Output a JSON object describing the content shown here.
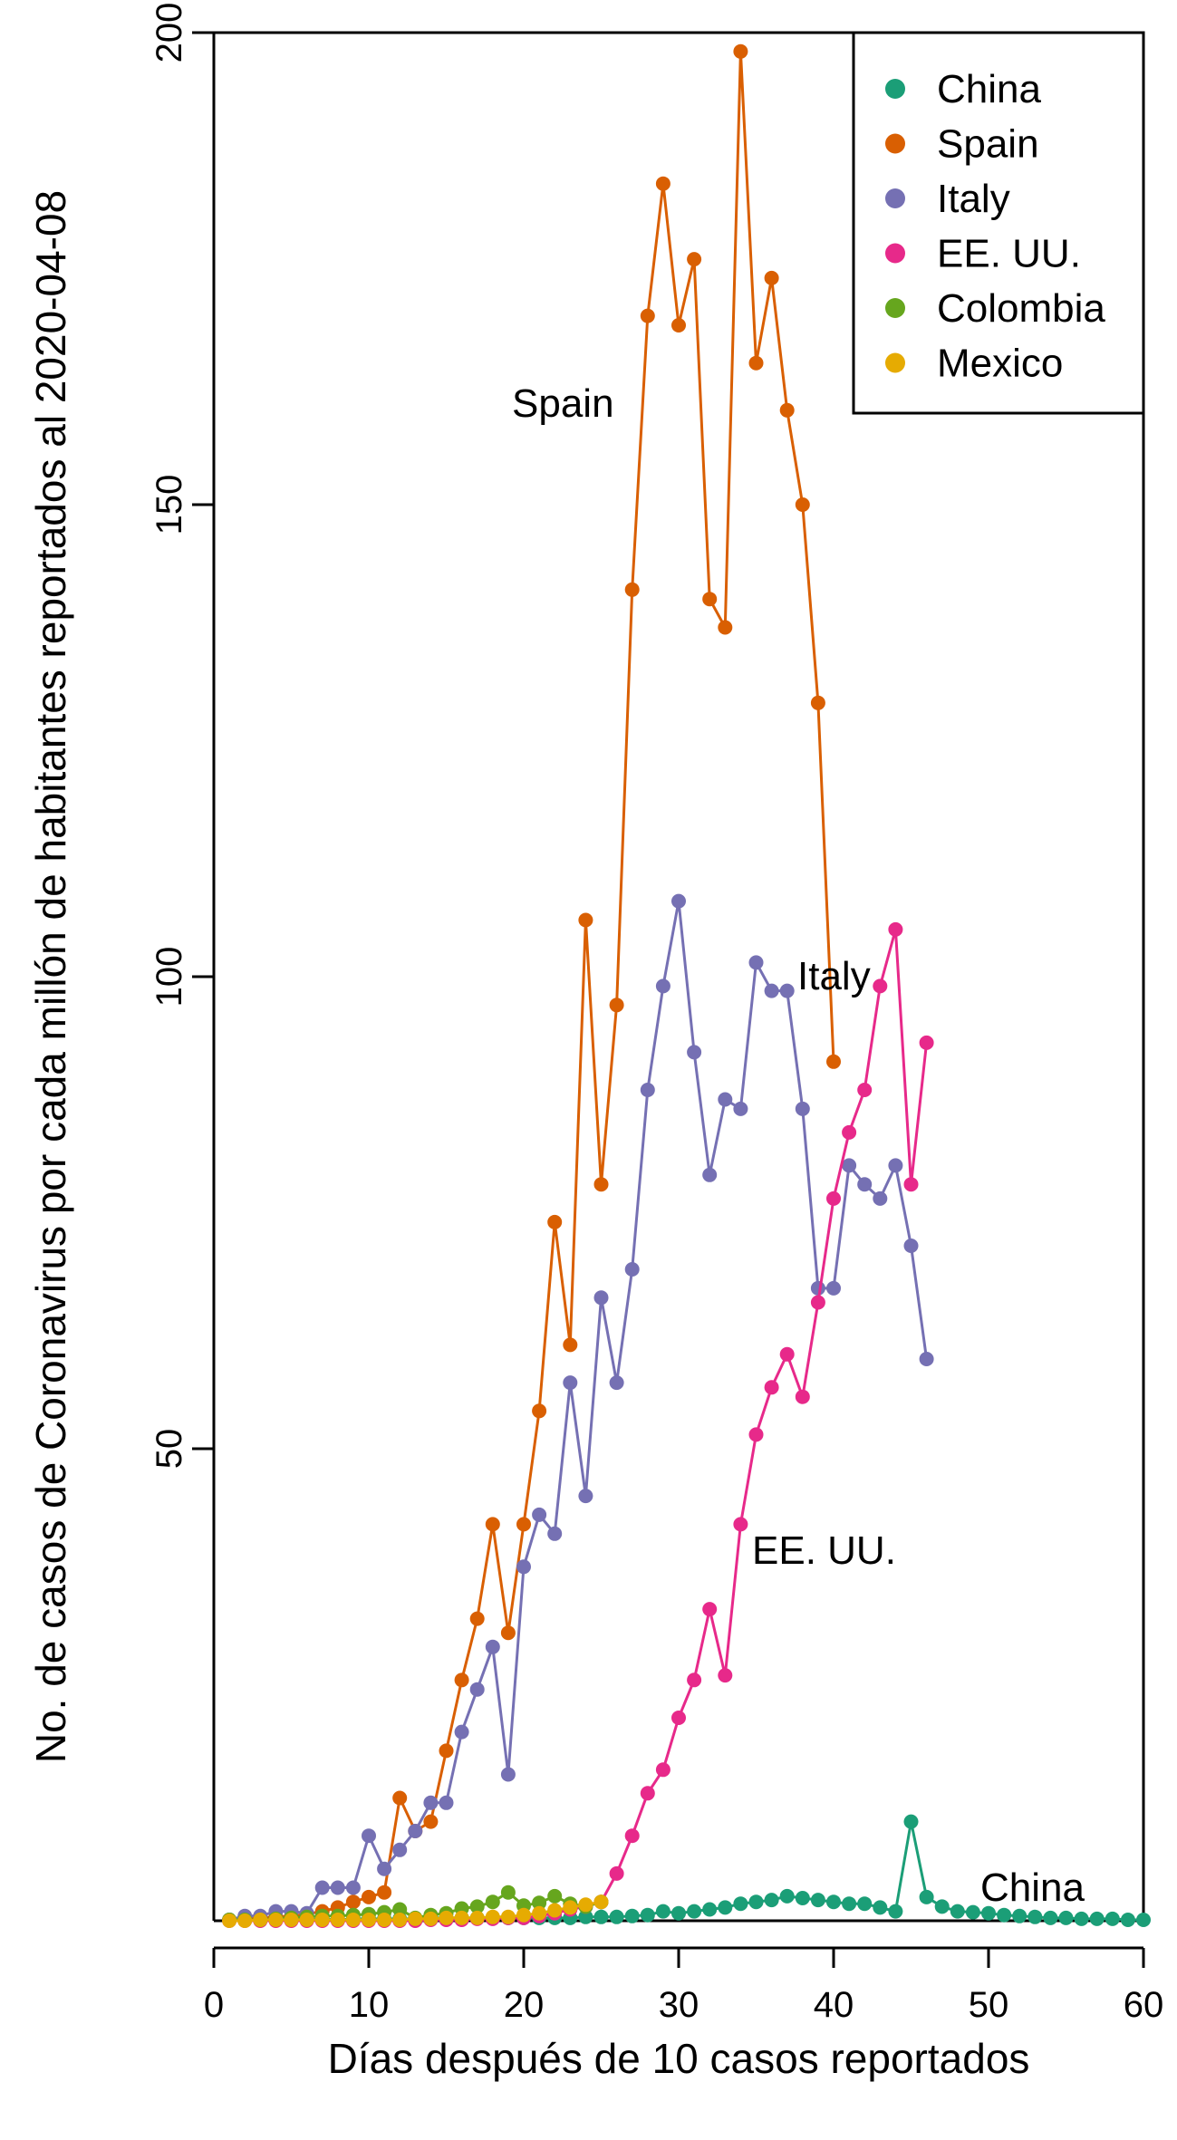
{
  "chart_data": {
    "type": "line",
    "xlabel": "Días después de 10 casos reportados",
    "ylabel": "No. de casos de Coronavirus por cada millón de habitantes reportados al 2020-04-08",
    "xlim": [
      0,
      60
    ],
    "ylim": [
      0,
      200
    ],
    "x_ticks": [
      0,
      10,
      20,
      30,
      40,
      50,
      60
    ],
    "y_ticks": [
      50,
      100,
      150,
      200
    ],
    "grid": false,
    "legend": {
      "placement": "top-right"
    },
    "series": [
      {
        "name": "China",
        "color": "#1B9E77",
        "label": "China",
        "x": [
          1,
          2,
          3,
          4,
          5,
          6,
          7,
          8,
          9,
          10,
          11,
          12,
          13,
          14,
          15,
          16,
          17,
          18,
          19,
          20,
          21,
          22,
          23,
          24,
          25,
          26,
          27,
          28,
          29,
          30,
          31,
          32,
          33,
          34,
          35,
          36,
          37,
          38,
          39,
          40,
          41,
          42,
          43,
          44,
          45,
          46,
          47,
          48,
          49,
          50,
          51,
          52,
          53,
          54,
          55,
          56,
          57,
          58,
          59,
          60
        ],
        "values": [
          0.1,
          0.1,
          0.1,
          0.1,
          0.1,
          0.1,
          0.2,
          0.1,
          0.2,
          0.2,
          0.2,
          0.2,
          0.2,
          0.3,
          0.3,
          0.3,
          0.3,
          0.3,
          0.3,
          0.3,
          0.3,
          0.3,
          0.3,
          0.4,
          0.4,
          0.4,
          0.5,
          0.6,
          1.0,
          0.8,
          1.0,
          1.2,
          1.4,
          1.8,
          2.0,
          2.2,
          2.6,
          2.4,
          2.2,
          2.0,
          1.8,
          1.8,
          1.4,
          1.0,
          10.5,
          2.5,
          1.5,
          1.0,
          0.9,
          0.8,
          0.6,
          0.5,
          0.4,
          0.3,
          0.3,
          0.2,
          0.2,
          0.2,
          0.1,
          0.1
        ]
      },
      {
        "name": "Spain",
        "color": "#D95F02",
        "label": "Spain",
        "x": [
          1,
          2,
          3,
          4,
          5,
          6,
          7,
          8,
          9,
          10,
          11,
          12,
          13,
          14,
          15,
          16,
          17,
          18,
          19,
          20,
          21,
          22,
          23,
          24,
          25,
          26,
          27,
          28,
          29,
          30,
          31,
          32,
          33,
          34,
          35,
          36,
          37,
          38,
          39,
          40
        ],
        "values": [
          0.1,
          0.2,
          0.3,
          0.4,
          0.5,
          0.7,
          1.0,
          1.4,
          2.0,
          2.5,
          3.0,
          13.0,
          9.5,
          10.5,
          18.0,
          25.5,
          32.0,
          42.0,
          30.5,
          42.0,
          54.0,
          74.0,
          61.0,
          106.0,
          78.0,
          97.0,
          141.0,
          170.0,
          184.0,
          169.0,
          176.0,
          140.0,
          137.0,
          198.0,
          165.0,
          174.0,
          160.0,
          150.0,
          129.0,
          91.0
        ]
      },
      {
        "name": "Italy",
        "color": "#7570B3",
        "label": "Italy",
        "x": [
          1,
          2,
          3,
          4,
          5,
          6,
          7,
          8,
          9,
          10,
          11,
          12,
          13,
          14,
          15,
          16,
          17,
          18,
          19,
          20,
          21,
          22,
          23,
          24,
          25,
          26,
          27,
          28,
          29,
          30,
          31,
          32,
          33,
          34,
          35,
          36,
          37,
          38,
          39,
          40,
          41,
          42,
          43,
          44,
          45,
          46
        ],
        "values": [
          0.1,
          0.5,
          0.5,
          1.0,
          1.0,
          0.8,
          3.5,
          3.5,
          3.5,
          9.0,
          5.5,
          7.5,
          9.5,
          12.5,
          12.5,
          20.0,
          24.5,
          29.0,
          15.5,
          37.5,
          43.0,
          41.0,
          57.0,
          45.0,
          66.0,
          57.0,
          69.0,
          88.0,
          99.0,
          108.0,
          92.0,
          79.0,
          87.0,
          86.0,
          101.5,
          98.5,
          98.5,
          86.0,
          67.0,
          67.0,
          80.0,
          78.0,
          76.5,
          80.0,
          71.5,
          59.5
        ]
      },
      {
        "name": "EE. UU.",
        "color": "#E7298A",
        "label": "EE. UU.",
        "x": [
          1,
          2,
          3,
          4,
          5,
          6,
          7,
          8,
          9,
          10,
          11,
          12,
          13,
          14,
          15,
          16,
          17,
          18,
          19,
          20,
          21,
          22,
          23,
          24,
          25,
          26,
          27,
          28,
          29,
          30,
          31,
          32,
          33,
          34,
          35,
          36,
          37,
          38,
          39,
          40,
          41,
          42,
          43,
          44,
          45,
          46
        ],
        "values": [
          0.0,
          0.0,
          0.0,
          0.0,
          0.0,
          0.0,
          0.0,
          0.0,
          0.0,
          0.0,
          0.0,
          0.0,
          0.0,
          0.1,
          0.1,
          0.1,
          0.2,
          0.2,
          0.3,
          0.3,
          0.5,
          0.8,
          1.2,
          1.5,
          2.0,
          5.0,
          9.0,
          13.5,
          16.0,
          21.5,
          25.5,
          33.0,
          26.0,
          42.0,
          51.5,
          56.5,
          60.0,
          55.5,
          65.5,
          76.5,
          83.5,
          88.0,
          99.0,
          105.0,
          78.0,
          93.0
        ]
      },
      {
        "name": "Colombia",
        "color": "#66A61E",
        "x": [
          1,
          2,
          3,
          4,
          5,
          6,
          7,
          8,
          9,
          10,
          11,
          12,
          13,
          14,
          15,
          16,
          17,
          18,
          19,
          20,
          21,
          22,
          23,
          24,
          25
        ],
        "values": [
          0.1,
          0.1,
          0.1,
          0.2,
          0.3,
          0.4,
          0.5,
          0.5,
          0.6,
          0.7,
          0.9,
          1.2,
          0.3,
          0.6,
          0.8,
          1.3,
          1.5,
          2.0,
          3.0,
          1.6,
          1.9,
          2.6,
          1.8,
          1.5,
          2.0
        ]
      },
      {
        "name": "Mexico",
        "color": "#E6AB02",
        "x": [
          1,
          2,
          3,
          4,
          5,
          6,
          7,
          8,
          9,
          10,
          11,
          12,
          13,
          14,
          15,
          16,
          17,
          18,
          19,
          20,
          21,
          22,
          23,
          24,
          25
        ],
        "values": [
          0.0,
          0.0,
          0.1,
          0.1,
          0.1,
          0.1,
          0.1,
          0.1,
          0.1,
          0.1,
          0.1,
          0.1,
          0.2,
          0.2,
          0.3,
          0.3,
          0.3,
          0.4,
          0.4,
          0.6,
          0.8,
          1.1,
          1.4,
          1.7,
          2.0
        ]
      }
    ]
  }
}
